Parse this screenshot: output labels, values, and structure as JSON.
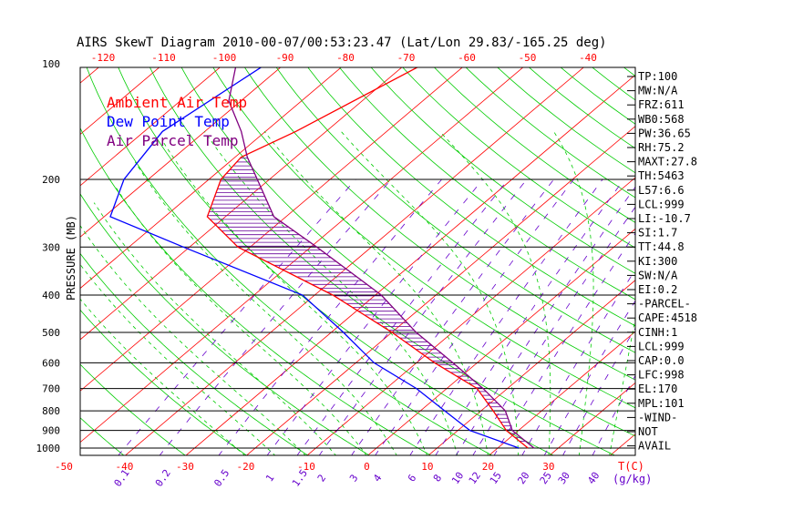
{
  "chart_data": {
    "type": "line",
    "title": "AIRS SkewT Diagram 2010-00-07/00:53:23.47 (Lat/Lon 29.83/-165.25 deg)",
    "ylabel": "PRESSURE (MB)",
    "xlabel_unit": "T(C)",
    "mixing_ratio_unit": "(g/kg)",
    "pressure_ticks": [
      100,
      200,
      300,
      400,
      500,
      600,
      700,
      800,
      900,
      1000
    ],
    "bottom_temp_ticks": [
      -50,
      -40,
      -30,
      -20,
      -10,
      0,
      10,
      20,
      30
    ],
    "top_temp_ticks": [
      -120,
      -110,
      -100,
      -90,
      -80,
      -70,
      -60,
      -50,
      -40
    ],
    "mixing_ratio_labels": [
      "0.1",
      "0.2",
      "0.5",
      "1",
      "1.5",
      "2",
      "3",
      "4",
      "6",
      "8",
      "10",
      "12",
      "15",
      "20",
      "25",
      "30",
      "40"
    ],
    "legend": [
      {
        "label": "Ambient Air Temp",
        "color": "#ff0000"
      },
      {
        "label": "Dew Point Temp",
        "color": "#0000ff"
      },
      {
        "label": "Air Parcel Temp",
        "color": "#800080"
      }
    ],
    "series": [
      {
        "name": "Ambient Air Temp",
        "color": "#ff0000",
        "points": [
          [
            100,
            -67
          ],
          [
            150,
            -75
          ],
          [
            175,
            -79
          ],
          [
            200,
            -78
          ],
          [
            250,
            -73
          ],
          [
            300,
            -62
          ],
          [
            400,
            -37
          ],
          [
            500,
            -20
          ],
          [
            600,
            -7
          ],
          [
            700,
            5
          ],
          [
            800,
            12
          ],
          [
            900,
            18
          ],
          [
            1000,
            25
          ]
        ]
      },
      {
        "name": "Dew Point Temp",
        "color": "#0000ff",
        "points": [
          [
            100,
            -93
          ],
          [
            150,
            -97
          ],
          [
            200,
            -94
          ],
          [
            250,
            -89
          ],
          [
            300,
            -71
          ],
          [
            400,
            -42
          ],
          [
            500,
            -28
          ],
          [
            600,
            -17
          ],
          [
            700,
            -5
          ],
          [
            800,
            4
          ],
          [
            900,
            12
          ],
          [
            1000,
            23.5
          ]
        ]
      },
      {
        "name": "Air Parcel Temp",
        "color": "#800080",
        "points": [
          [
            100,
            -98
          ],
          [
            125,
            -92
          ],
          [
            150,
            -84
          ],
          [
            175,
            -78
          ],
          [
            200,
            -72
          ],
          [
            250,
            -62
          ],
          [
            300,
            -49
          ],
          [
            400,
            -29
          ],
          [
            500,
            -16
          ],
          [
            600,
            -4
          ],
          [
            700,
            6
          ],
          [
            800,
            14
          ],
          [
            900,
            19
          ],
          [
            1000,
            26
          ]
        ]
      }
    ]
  },
  "indices": [
    "TP:100",
    "MW:N/A",
    "FRZ:611",
    "WB0:568",
    "PW:36.65",
    "RH:75.2",
    "MAXT:27.8",
    "TH:5463",
    "L57:6.6",
    "LCL:999",
    "LI:-10.7",
    "SI:1.7",
    "TT:44.8",
    "KI:300",
    "SW:N/A",
    "EI:0.2",
    "-PARCEL-",
    "CAPE:4518",
    "CINH:1",
    "LCL:999",
    "CAP:0.0",
    "LFC:998",
    "EL:170",
    "MPL:101",
    "-WIND-",
    "NOT",
    "AVAIL"
  ],
  "colors": {
    "isotherm": "#ff0000",
    "dry_adiabat": "#00cc00",
    "moist_adiabat": "#00cc00",
    "mixing_ratio": "#6600cc",
    "isobar": "#000000",
    "hatch": "#660099"
  }
}
